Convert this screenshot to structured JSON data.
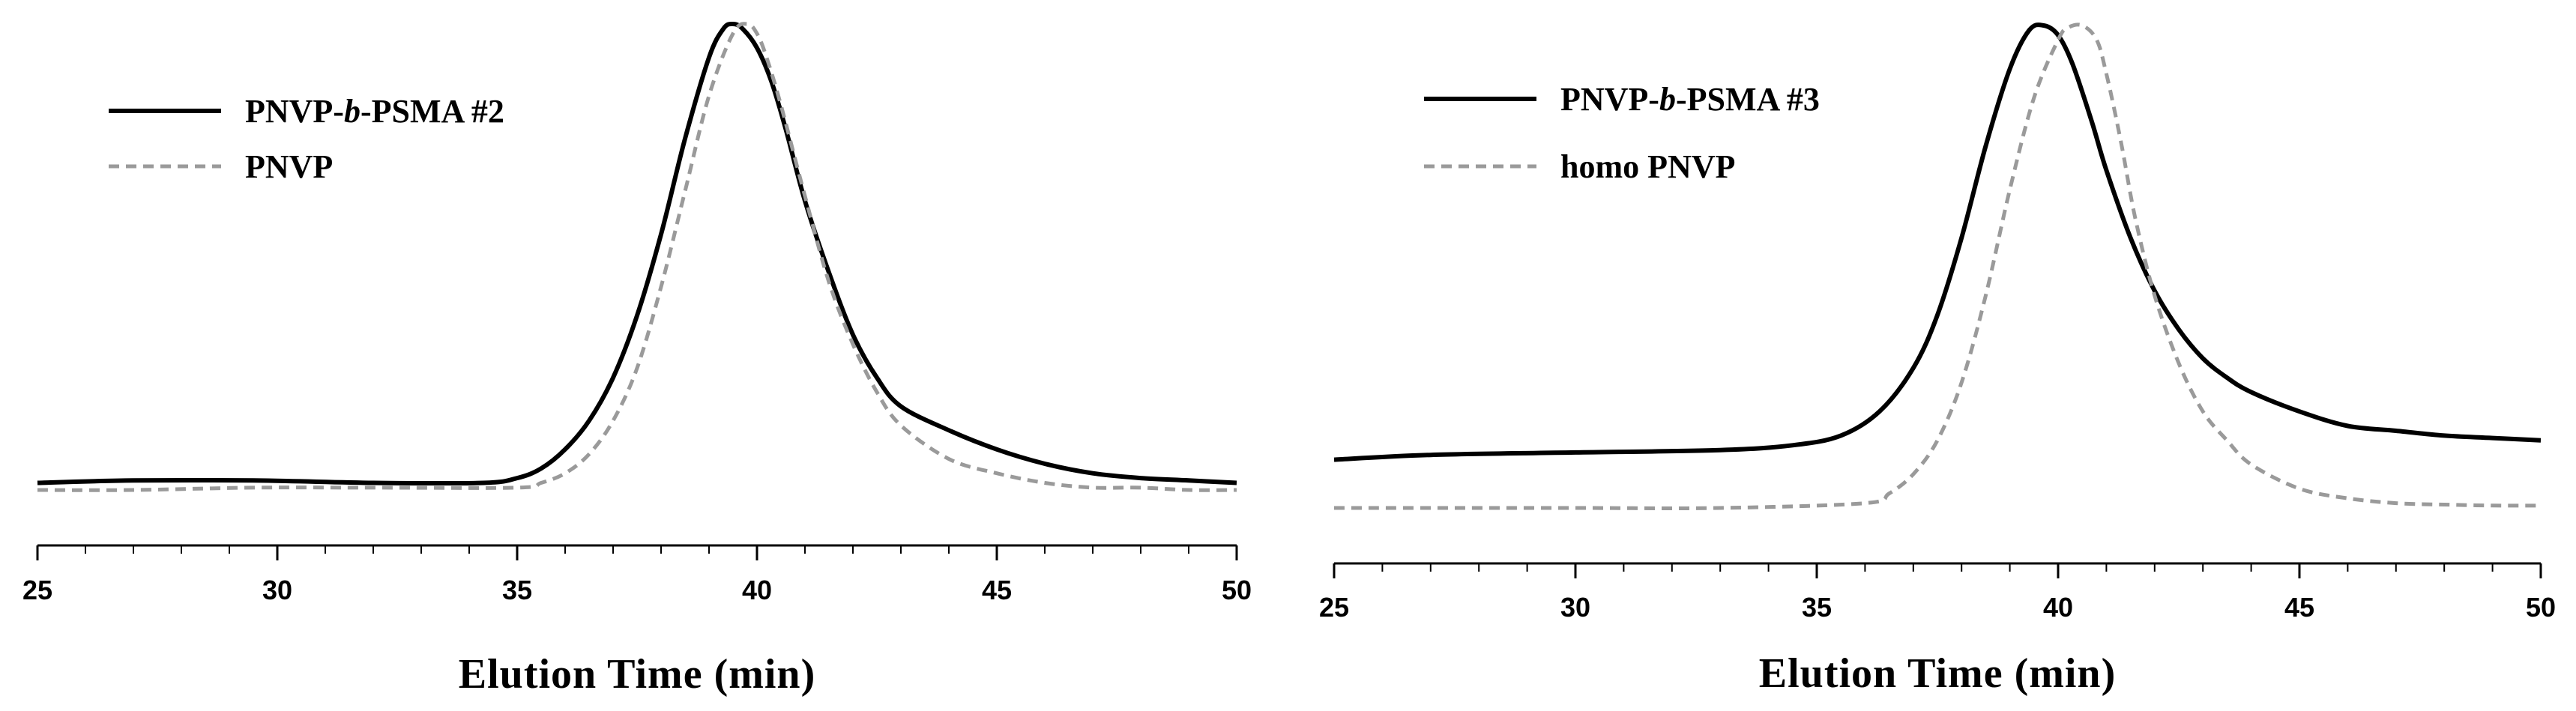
{
  "chart_data": [
    {
      "type": "line",
      "xlabel": "Elution Time (min)",
      "ylabel": "",
      "xlim": [
        25,
        50
      ],
      "ylim": [
        0,
        1
      ],
      "x_ticks": [
        "25",
        "30",
        "35",
        "40",
        "45",
        "50"
      ],
      "y_ticks_shown": false,
      "grid": false,
      "legend_position": "top-left",
      "legend": [
        {
          "prefix": "PNVP-",
          "italic": "b",
          "suffix": "-PSMA #2",
          "style": "solid",
          "color": "#000000"
        },
        {
          "prefix": "PNVP",
          "italic": "",
          "suffix": "",
          "style": "dashed",
          "color": "#9a9a9a"
        }
      ],
      "series": [
        {
          "name": "PNVP-b-PSMA #2",
          "style": "solid",
          "color": "#000000",
          "x": [
            25,
            27,
            29.5,
            32,
            34.3,
            35,
            35.5,
            36,
            36.5,
            37,
            37.5,
            38,
            38.5,
            39,
            39.3,
            39.5,
            39.7,
            40,
            40.3,
            40.6,
            41,
            41.5,
            42,
            42.5,
            43,
            44,
            45,
            46,
            47,
            48,
            49,
            50
          ],
          "y": [
            0.04,
            0.045,
            0.045,
            0.04,
            0.04,
            0.05,
            0.07,
            0.11,
            0.17,
            0.26,
            0.39,
            0.56,
            0.76,
            0.93,
            0.99,
            1.0,
            0.99,
            0.95,
            0.88,
            0.78,
            0.63,
            0.48,
            0.35,
            0.26,
            0.2,
            0.15,
            0.11,
            0.08,
            0.06,
            0.05,
            0.045,
            0.04
          ]
        },
        {
          "name": "PNVP",
          "style": "dashed",
          "color": "#9a9a9a",
          "x": [
            25,
            27,
            29.5,
            32,
            35,
            35.5,
            36,
            36.5,
            37,
            37.5,
            38,
            38.5,
            39,
            39.5,
            39.8,
            40,
            40.2,
            40.5,
            41,
            41.5,
            42,
            42.5,
            43,
            44,
            45,
            46,
            47,
            48,
            49,
            50
          ],
          "y": [
            0.025,
            0.025,
            0.03,
            0.03,
            0.03,
            0.04,
            0.06,
            0.1,
            0.17,
            0.28,
            0.45,
            0.65,
            0.85,
            0.98,
            1.0,
            0.98,
            0.93,
            0.83,
            0.64,
            0.46,
            0.33,
            0.23,
            0.16,
            0.09,
            0.06,
            0.04,
            0.03,
            0.03,
            0.025,
            0.025
          ]
        }
      ]
    },
    {
      "type": "line",
      "xlabel": "Elution Time (min)",
      "ylabel": "",
      "xlim": [
        25,
        50
      ],
      "ylim": [
        0,
        1
      ],
      "x_ticks": [
        "25",
        "30",
        "35",
        "40",
        "45",
        "50"
      ],
      "y_ticks_shown": false,
      "grid": false,
      "legend_position": "top-left",
      "legend": [
        {
          "prefix": "PNVP-",
          "italic": "b",
          "suffix": "-PSMA #3",
          "style": "solid",
          "color": "#000000"
        },
        {
          "prefix": "homo PNVP",
          "italic": "",
          "suffix": "",
          "style": "dashed",
          "color": "#9a9a9a"
        }
      ],
      "series": [
        {
          "name": "PNVP-b-PSMA #3",
          "style": "solid",
          "color": "#000000",
          "x": [
            25,
            27,
            30,
            33,
            34.5,
            35.5,
            36.3,
            37,
            37.5,
            38,
            38.5,
            39,
            39.4,
            39.7,
            40,
            40.3,
            40.7,
            41,
            41.5,
            42,
            42.5,
            43,
            43.5,
            44,
            45,
            46,
            47,
            48,
            49,
            50
          ],
          "y": [
            0.1,
            0.11,
            0.115,
            0.12,
            0.13,
            0.15,
            0.2,
            0.29,
            0.4,
            0.56,
            0.75,
            0.91,
            0.99,
            1.0,
            0.98,
            0.92,
            0.8,
            0.7,
            0.56,
            0.45,
            0.37,
            0.31,
            0.27,
            0.24,
            0.2,
            0.17,
            0.16,
            0.15,
            0.145,
            0.14
          ]
        },
        {
          "name": "homo PNVP",
          "style": "dashed",
          "color": "#9a9a9a",
          "x": [
            25,
            27,
            30,
            33,
            36,
            36.5,
            37,
            37.5,
            38,
            38.5,
            39,
            39.5,
            40,
            40.2,
            40.5,
            40.8,
            41,
            41.3,
            41.6,
            42,
            42.5,
            43,
            43.5,
            44,
            45,
            46,
            47,
            48,
            49,
            50
          ],
          "y": [
            0.0,
            0.0,
            0.0,
            0.0,
            0.01,
            0.03,
            0.07,
            0.14,
            0.26,
            0.44,
            0.66,
            0.85,
            0.97,
            0.995,
            1.0,
            0.97,
            0.9,
            0.76,
            0.6,
            0.44,
            0.3,
            0.2,
            0.14,
            0.09,
            0.04,
            0.02,
            0.01,
            0.007,
            0.005,
            0.005
          ]
        }
      ]
    }
  ]
}
